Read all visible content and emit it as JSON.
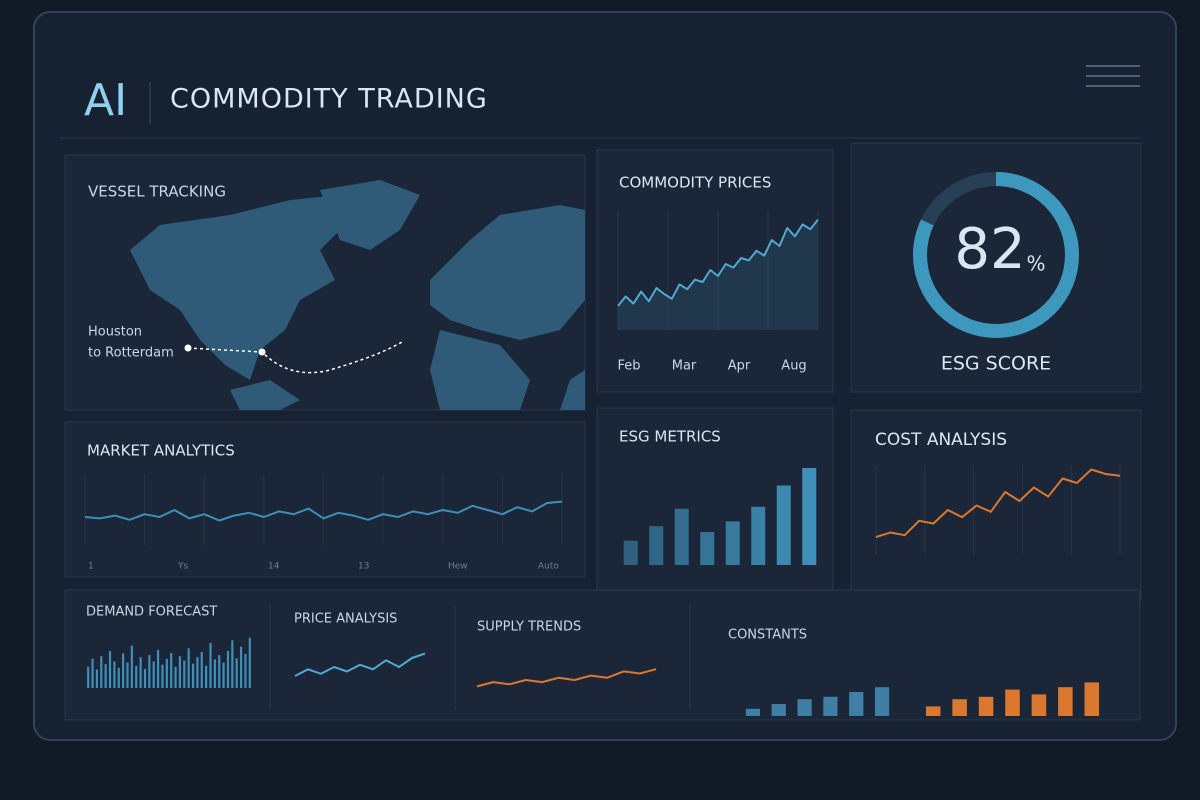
{
  "header": {
    "logo": "AI",
    "title": "COMMODITY TRADING"
  },
  "vessel_tracking": {
    "title": "VESSEL TRACKING",
    "route": [
      "Houston",
      "to Rotterdam"
    ]
  },
  "commodity_prices": {
    "title": "COMMODITY PRICES",
    "x_labels": [
      "Feb",
      "Mar",
      "Apr",
      "Aug"
    ],
    "values": [
      20,
      28,
      22,
      32,
      24,
      35,
      30,
      26,
      38,
      34,
      42,
      40,
      50,
      45,
      55,
      52,
      60,
      58,
      66,
      62,
      75,
      70,
      85,
      78,
      88,
      84,
      92
    ]
  },
  "esg_score": {
    "value": 82,
    "unit": "%",
    "label": "ESG SCORE"
  },
  "market_analytics": {
    "title": "MARKET ANALYTICS",
    "x_labels": [
      "1",
      "Ys",
      "14",
      "13",
      "Hew",
      "Auto"
    ],
    "values": [
      40,
      38,
      42,
      36,
      44,
      40,
      50,
      38,
      44,
      35,
      42,
      46,
      40,
      48,
      44,
      52,
      38,
      46,
      42,
      36,
      44,
      40,
      48,
      44,
      50,
      46,
      56,
      50,
      44,
      54,
      48,
      60,
      62
    ]
  },
  "esg_metrics": {
    "title": "ESG METRICS",
    "values": [
      25,
      40,
      58,
      34,
      45,
      60,
      82,
      100
    ]
  },
  "cost_analysis": {
    "title": "COST ANALYSIS",
    "values": [
      20,
      25,
      22,
      38,
      35,
      50,
      42,
      55,
      48,
      70,
      60,
      75,
      65,
      85,
      80,
      95,
      90,
      88
    ]
  },
  "demand_forecast": {
    "title": "DEMAND FORECAST",
    "values": [
      40,
      55,
      35,
      60,
      45,
      70,
      50,
      38,
      65,
      48,
      80,
      42,
      58,
      36,
      62,
      50,
      72,
      44,
      55,
      66,
      40,
      60,
      52,
      75,
      46,
      58,
      68,
      42,
      85,
      54,
      62,
      48,
      70,
      90,
      56,
      78,
      64,
      95
    ]
  },
  "price_analysis": {
    "title": "PRICE ANALYSIS",
    "values": [
      20,
      35,
      25,
      40,
      30,
      45,
      35,
      55,
      40,
      60,
      70
    ]
  },
  "supply_trends": {
    "title": "SUPPLY TRENDS",
    "values": [
      20,
      30,
      25,
      35,
      30,
      40,
      35,
      45,
      40,
      55,
      50,
      60
    ]
  },
  "constants": {
    "title": "CONSTANTS",
    "series": [
      {
        "name": "blue",
        "color": "#3f7fa6",
        "values": [
          15,
          25,
          35,
          40,
          50,
          60
        ]
      },
      {
        "name": "orange",
        "color": "#d9782e",
        "values": [
          20,
          35,
          40,
          55,
          45,
          60,
          70
        ]
      }
    ]
  }
}
